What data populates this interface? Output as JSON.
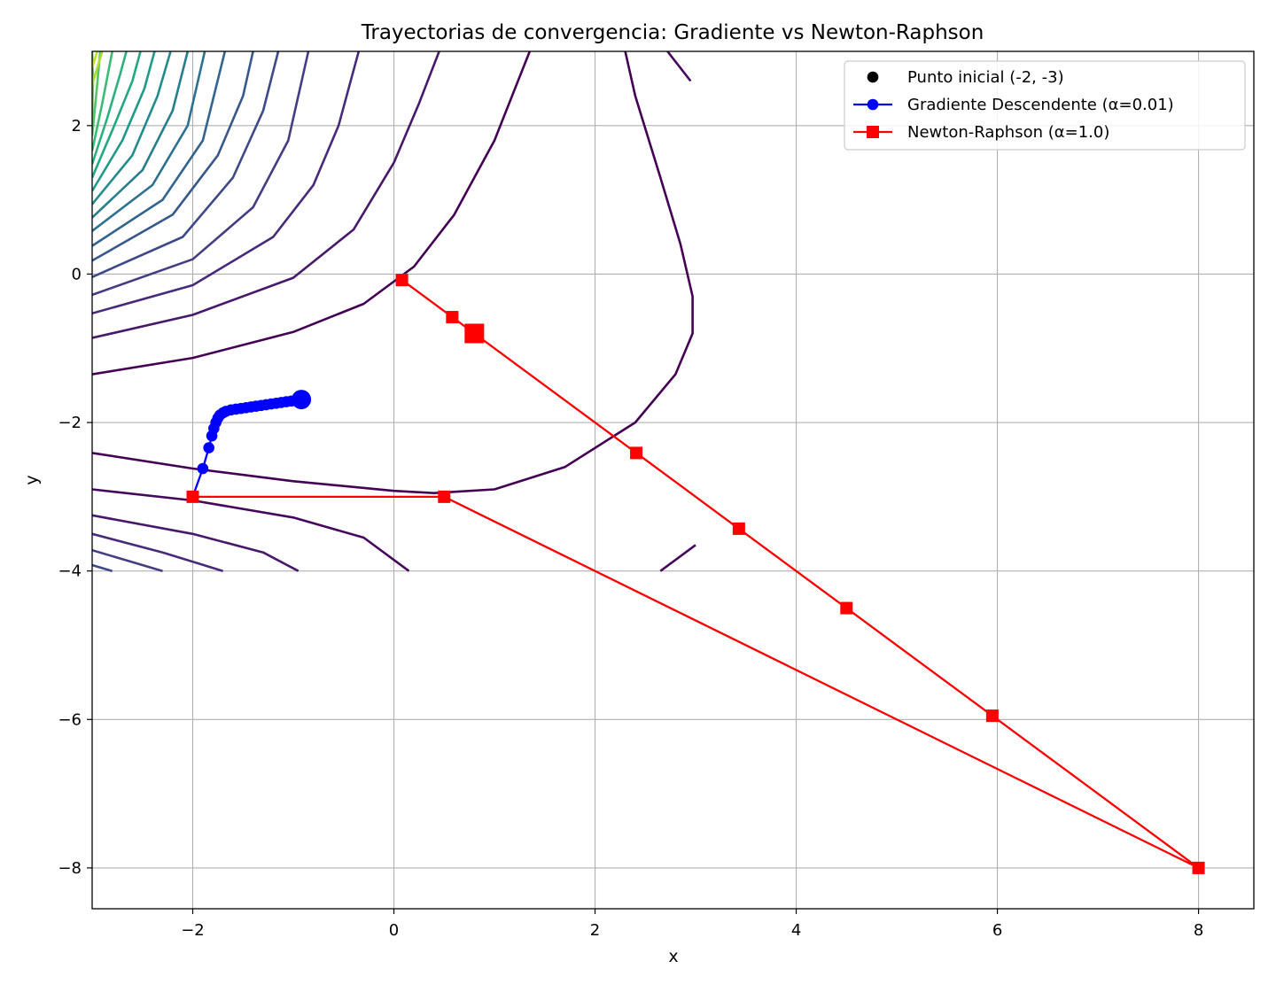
{
  "chart_data": {
    "type": "line",
    "title": "Trayectorias de convergencia: Gradiente vs Newton-Raphson",
    "xlabel": "x",
    "ylabel": "y",
    "xlim": [
      -3.0,
      8.55
    ],
    "ylim": [
      -8.55,
      3.0
    ],
    "xticks": [
      -2,
      0,
      2,
      4,
      6,
      8
    ],
    "yticks": [
      2,
      0,
      -2,
      -4,
      -6,
      -8
    ],
    "xtick_labels": [
      "−2",
      "0",
      "2",
      "4",
      "6",
      "8"
    ],
    "ytick_labels": [
      "2",
      "0",
      "−2",
      "−4",
      "−6",
      "−8"
    ],
    "grid": true,
    "legend_position": "top-right",
    "legend": [
      {
        "label": "Punto inicial (-2, -3)",
        "color": "#000000",
        "marker": "circle",
        "line": false
      },
      {
        "label": "Gradiente Descendente (α=0.01)",
        "color": "#0000ff",
        "marker": "circle",
        "line": true
      },
      {
        "label": "Newton-Raphson (α=1.0)",
        "color": "#ff0000",
        "marker": "square",
        "line": true
      }
    ],
    "series": [
      {
        "name": "Gradiente Descendente (α=0.01)",
        "color": "#0000ff",
        "marker": "circle",
        "x": [
          -2.0,
          -1.9,
          -1.84,
          -1.81,
          -1.79,
          -1.77,
          -1.75,
          -1.73,
          -1.7,
          -1.67,
          -1.62,
          -1.57,
          -1.52,
          -1.47,
          -1.42,
          -1.37,
          -1.32,
          -1.27,
          -1.22,
          -1.17,
          -1.12,
          -1.07,
          -1.02,
          -0.97,
          -0.92
        ],
        "y": [
          -3.0,
          -2.62,
          -2.34,
          -2.18,
          -2.08,
          -2.0,
          -1.94,
          -1.9,
          -1.87,
          -1.85,
          -1.83,
          -1.82,
          -1.81,
          -1.8,
          -1.79,
          -1.78,
          -1.77,
          -1.76,
          -1.75,
          -1.74,
          -1.73,
          -1.72,
          -1.71,
          -1.7,
          -1.69
        ]
      },
      {
        "name": "Newton-Raphson (α=1.0)",
        "color": "#ff0000",
        "marker": "square",
        "x": [
          -2.0,
          0.5,
          8.0,
          5.95,
          4.5,
          3.43,
          2.41,
          0.8,
          0.58,
          0.08
        ],
        "y": [
          -3.0,
          -3.0,
          -8.0,
          -5.95,
          -4.5,
          -3.43,
          -2.41,
          -0.8,
          -0.58,
          -0.08
        ]
      }
    ],
    "annotations": [
      {
        "type": "marker",
        "series": "Gradiente Descendente (α=0.01)",
        "x": -0.92,
        "y": -1.69,
        "size": "large"
      },
      {
        "type": "marker",
        "series": "Newton-Raphson (α=1.0)",
        "x": 0.8,
        "y": -0.8,
        "size": "large"
      }
    ],
    "contours": {
      "colormap": "viridis",
      "lines": [
        {
          "color": "#440154",
          "points": [
            [
              -3.0,
              -2.41
            ],
            [
              -2.0,
              -2.62
            ],
            [
              -1.0,
              -2.79
            ],
            [
              0.0,
              -2.92
            ],
            [
              0.4,
              -2.95
            ],
            [
              1.0,
              -2.9
            ],
            [
              1.7,
              -2.6
            ],
            [
              2.4,
              -2.0
            ],
            [
              2.8,
              -1.35
            ],
            [
              2.97,
              -0.8
            ],
            [
              2.97,
              -0.3
            ],
            [
              2.85,
              0.4
            ],
            [
              2.65,
              1.3
            ],
            [
              2.4,
              2.4
            ],
            [
              2.3,
              3.0
            ]
          ]
        },
        {
          "color": "#440154",
          "points": [
            [
              -3.0,
              -1.35
            ],
            [
              -2.0,
              -1.13
            ],
            [
              -1.0,
              -0.78
            ],
            [
              -0.3,
              -0.4
            ],
            [
              0.2,
              0.1
            ],
            [
              0.6,
              0.8
            ],
            [
              1.0,
              1.8
            ],
            [
              1.35,
              3.0
            ]
          ]
        },
        {
          "color": "#46085c",
          "points": [
            [
              2.95,
              2.6
            ],
            [
              2.72,
              3.0
            ]
          ]
        },
        {
          "color": "#46085c",
          "points": [
            [
              -3.0,
              -2.9
            ],
            [
              -2.0,
              -3.05
            ],
            [
              -1.0,
              -3.28
            ],
            [
              -0.3,
              -3.55
            ],
            [
              0.15,
              -4.0
            ]
          ]
        },
        {
          "color": "#46085c",
          "points": [
            [
              2.65,
              -4.0
            ],
            [
              3.0,
              -3.65
            ]
          ]
        },
        {
          "color": "#48186a",
          "points": [
            [
              -3.0,
              -0.86
            ],
            [
              -2.0,
              -0.55
            ],
            [
              -1.0,
              -0.05
            ],
            [
              -0.4,
              0.6
            ],
            [
              0.0,
              1.5
            ],
            [
              0.25,
              2.3
            ],
            [
              0.45,
              3.0
            ]
          ]
        },
        {
          "color": "#48186a",
          "points": [
            [
              -3.0,
              -3.25
            ],
            [
              -2.0,
              -3.5
            ],
            [
              -1.3,
              -3.75
            ],
            [
              -0.95,
              -4.0
            ]
          ]
        },
        {
          "color": "#472a7a",
          "points": [
            [
              -3.0,
              -0.53
            ],
            [
              -2.0,
              -0.15
            ],
            [
              -1.2,
              0.5
            ],
            [
              -0.8,
              1.2
            ],
            [
              -0.55,
              2.0
            ],
            [
              -0.35,
              3.0
            ]
          ]
        },
        {
          "color": "#472a7a",
          "points": [
            [
              -3.0,
              -3.5
            ],
            [
              -2.3,
              -3.75
            ],
            [
              -1.7,
              -4.0
            ]
          ]
        },
        {
          "color": "#433d84",
          "points": [
            [
              -3.0,
              -0.28
            ],
            [
              -2.0,
              0.2
            ],
            [
              -1.4,
              0.9
            ],
            [
              -1.05,
              1.8
            ],
            [
              -0.85,
              3.0
            ]
          ]
        },
        {
          "color": "#433d84",
          "points": [
            [
              -3.0,
              -3.72
            ],
            [
              -2.3,
              -4.0
            ]
          ]
        },
        {
          "color": "#3e4989",
          "points": [
            [
              -3.0,
              -0.04
            ],
            [
              -2.1,
              0.5
            ],
            [
              -1.6,
              1.3
            ],
            [
              -1.3,
              2.2
            ],
            [
              -1.15,
              3.0
            ]
          ]
        },
        {
          "color": "#3e4989",
          "points": [
            [
              -3.0,
              -3.92
            ],
            [
              -2.8,
              -4.0
            ]
          ]
        },
        {
          "color": "#38588c",
          "points": [
            [
              -3.0,
              0.18
            ],
            [
              -2.2,
              0.8
            ],
            [
              -1.75,
              1.6
            ],
            [
              -1.5,
              2.4
            ],
            [
              -1.4,
              3.0
            ]
          ]
        },
        {
          "color": "#32648e",
          "points": [
            [
              -3.0,
              0.38
            ],
            [
              -2.3,
              1.0
            ],
            [
              -1.9,
              1.8
            ],
            [
              -1.68,
              3.0
            ]
          ]
        },
        {
          "color": "#2c718e",
          "points": [
            [
              -3.0,
              0.58
            ],
            [
              -2.4,
              1.2
            ],
            [
              -2.05,
              2.0
            ],
            [
              -1.88,
              3.0
            ]
          ]
        },
        {
          "color": "#277f8e",
          "points": [
            [
              -3.0,
              0.76
            ],
            [
              -2.5,
              1.4
            ],
            [
              -2.2,
              2.2
            ],
            [
              -2.05,
              3.0
            ]
          ]
        },
        {
          "color": "#228c8d",
          "points": [
            [
              -3.0,
              0.94
            ],
            [
              -2.6,
              1.6
            ],
            [
              -2.35,
              2.4
            ],
            [
              -2.22,
              3.0
            ]
          ]
        },
        {
          "color": "#1f9a8a",
          "points": [
            [
              -3.0,
              1.12
            ],
            [
              -2.7,
              1.8
            ],
            [
              -2.48,
              2.5
            ],
            [
              -2.38,
              3.0
            ]
          ]
        },
        {
          "color": "#22a884",
          "points": [
            [
              -3.0,
              1.3
            ],
            [
              -2.78,
              2.0
            ],
            [
              -2.6,
              2.6
            ],
            [
              -2.52,
              3.0
            ]
          ]
        },
        {
          "color": "#2cb17e",
          "points": [
            [
              -3.0,
              1.48
            ],
            [
              -2.85,
              2.1
            ],
            [
              -2.72,
              2.7
            ],
            [
              -2.66,
              3.0
            ]
          ]
        },
        {
          "color": "#3bbb75",
          "points": [
            [
              -3.0,
              1.66
            ],
            [
              -2.9,
              2.3
            ],
            [
              -2.8,
              3.0
            ]
          ]
        },
        {
          "color": "#52c569",
          "points": [
            [
              -3.0,
              1.86
            ],
            [
              -2.96,
              2.4
            ],
            [
              -2.92,
              3.0
            ]
          ]
        },
        {
          "color": "#6ccd5a",
          "points": [
            [
              -3.0,
              2.06
            ],
            [
              -2.99,
              2.6
            ],
            [
              -3.0,
              3.0
            ]
          ]
        },
        {
          "color": "#8ed645",
          "points": [
            [
              -3.0,
              2.3
            ],
            [
              -3.0,
              2.7
            ]
          ]
        },
        {
          "color": "#addc30",
          "points": [
            [
              -3.0,
              2.55
            ],
            [
              -2.9,
              3.0
            ]
          ]
        },
        {
          "color": "#c8e020",
          "points": [
            [
              -3.0,
              2.78
            ],
            [
              -2.95,
              3.0
            ]
          ]
        }
      ]
    }
  }
}
